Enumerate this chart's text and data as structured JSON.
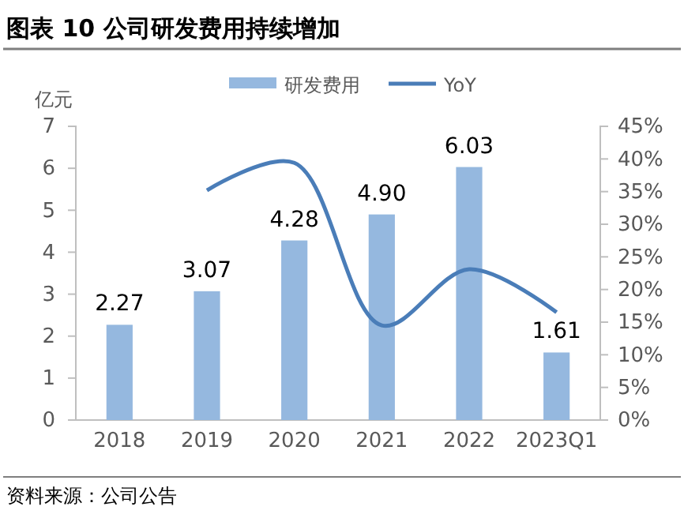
{
  "chart_data": {
    "type": "bar",
    "title": "图表 10 公司研发费用持续增加",
    "ylabel": "亿元",
    "categories": [
      "2018",
      "2019",
      "2020",
      "2021",
      "2022",
      "2023Q1"
    ],
    "series": [
      {
        "name": "研发费用",
        "color": "#95b8df",
        "values": [
          2.27,
          3.07,
          4.28,
          4.9,
          6.03,
          1.61
        ],
        "value_labels": [
          "2.27",
          "3.07",
          "4.28",
          "4.90",
          "6.03",
          "1.61"
        ]
      },
      {
        "name": "YoY",
        "type": "line",
        "axis": "y2",
        "color": "#4a7db8",
        "values": [
          null,
          35.2,
          39.4,
          14.5,
          23.1,
          16.5
        ]
      }
    ],
    "ylim": [
      0,
      7
    ],
    "yticks": [
      0,
      1,
      2,
      3,
      4,
      5,
      6,
      7
    ],
    "y2lim": [
      0,
      45
    ],
    "y2ticks": [
      {
        "value": 0,
        "label": "0%"
      },
      {
        "value": 5,
        "label": "5%"
      },
      {
        "value": 10,
        "label": "10%"
      },
      {
        "value": 15,
        "label": "15%"
      },
      {
        "value": 20,
        "label": "20%"
      },
      {
        "value": 25,
        "label": "25%"
      },
      {
        "value": 30,
        "label": "30%"
      },
      {
        "value": 35,
        "label": "35%"
      },
      {
        "value": 40,
        "label": "40%"
      },
      {
        "value": 45,
        "label": "45%"
      }
    ],
    "legend": "top",
    "grid": false,
    "marker": "none",
    "line_style": "solid",
    "annotations": [
      "资料来源：公司公告"
    ]
  }
}
